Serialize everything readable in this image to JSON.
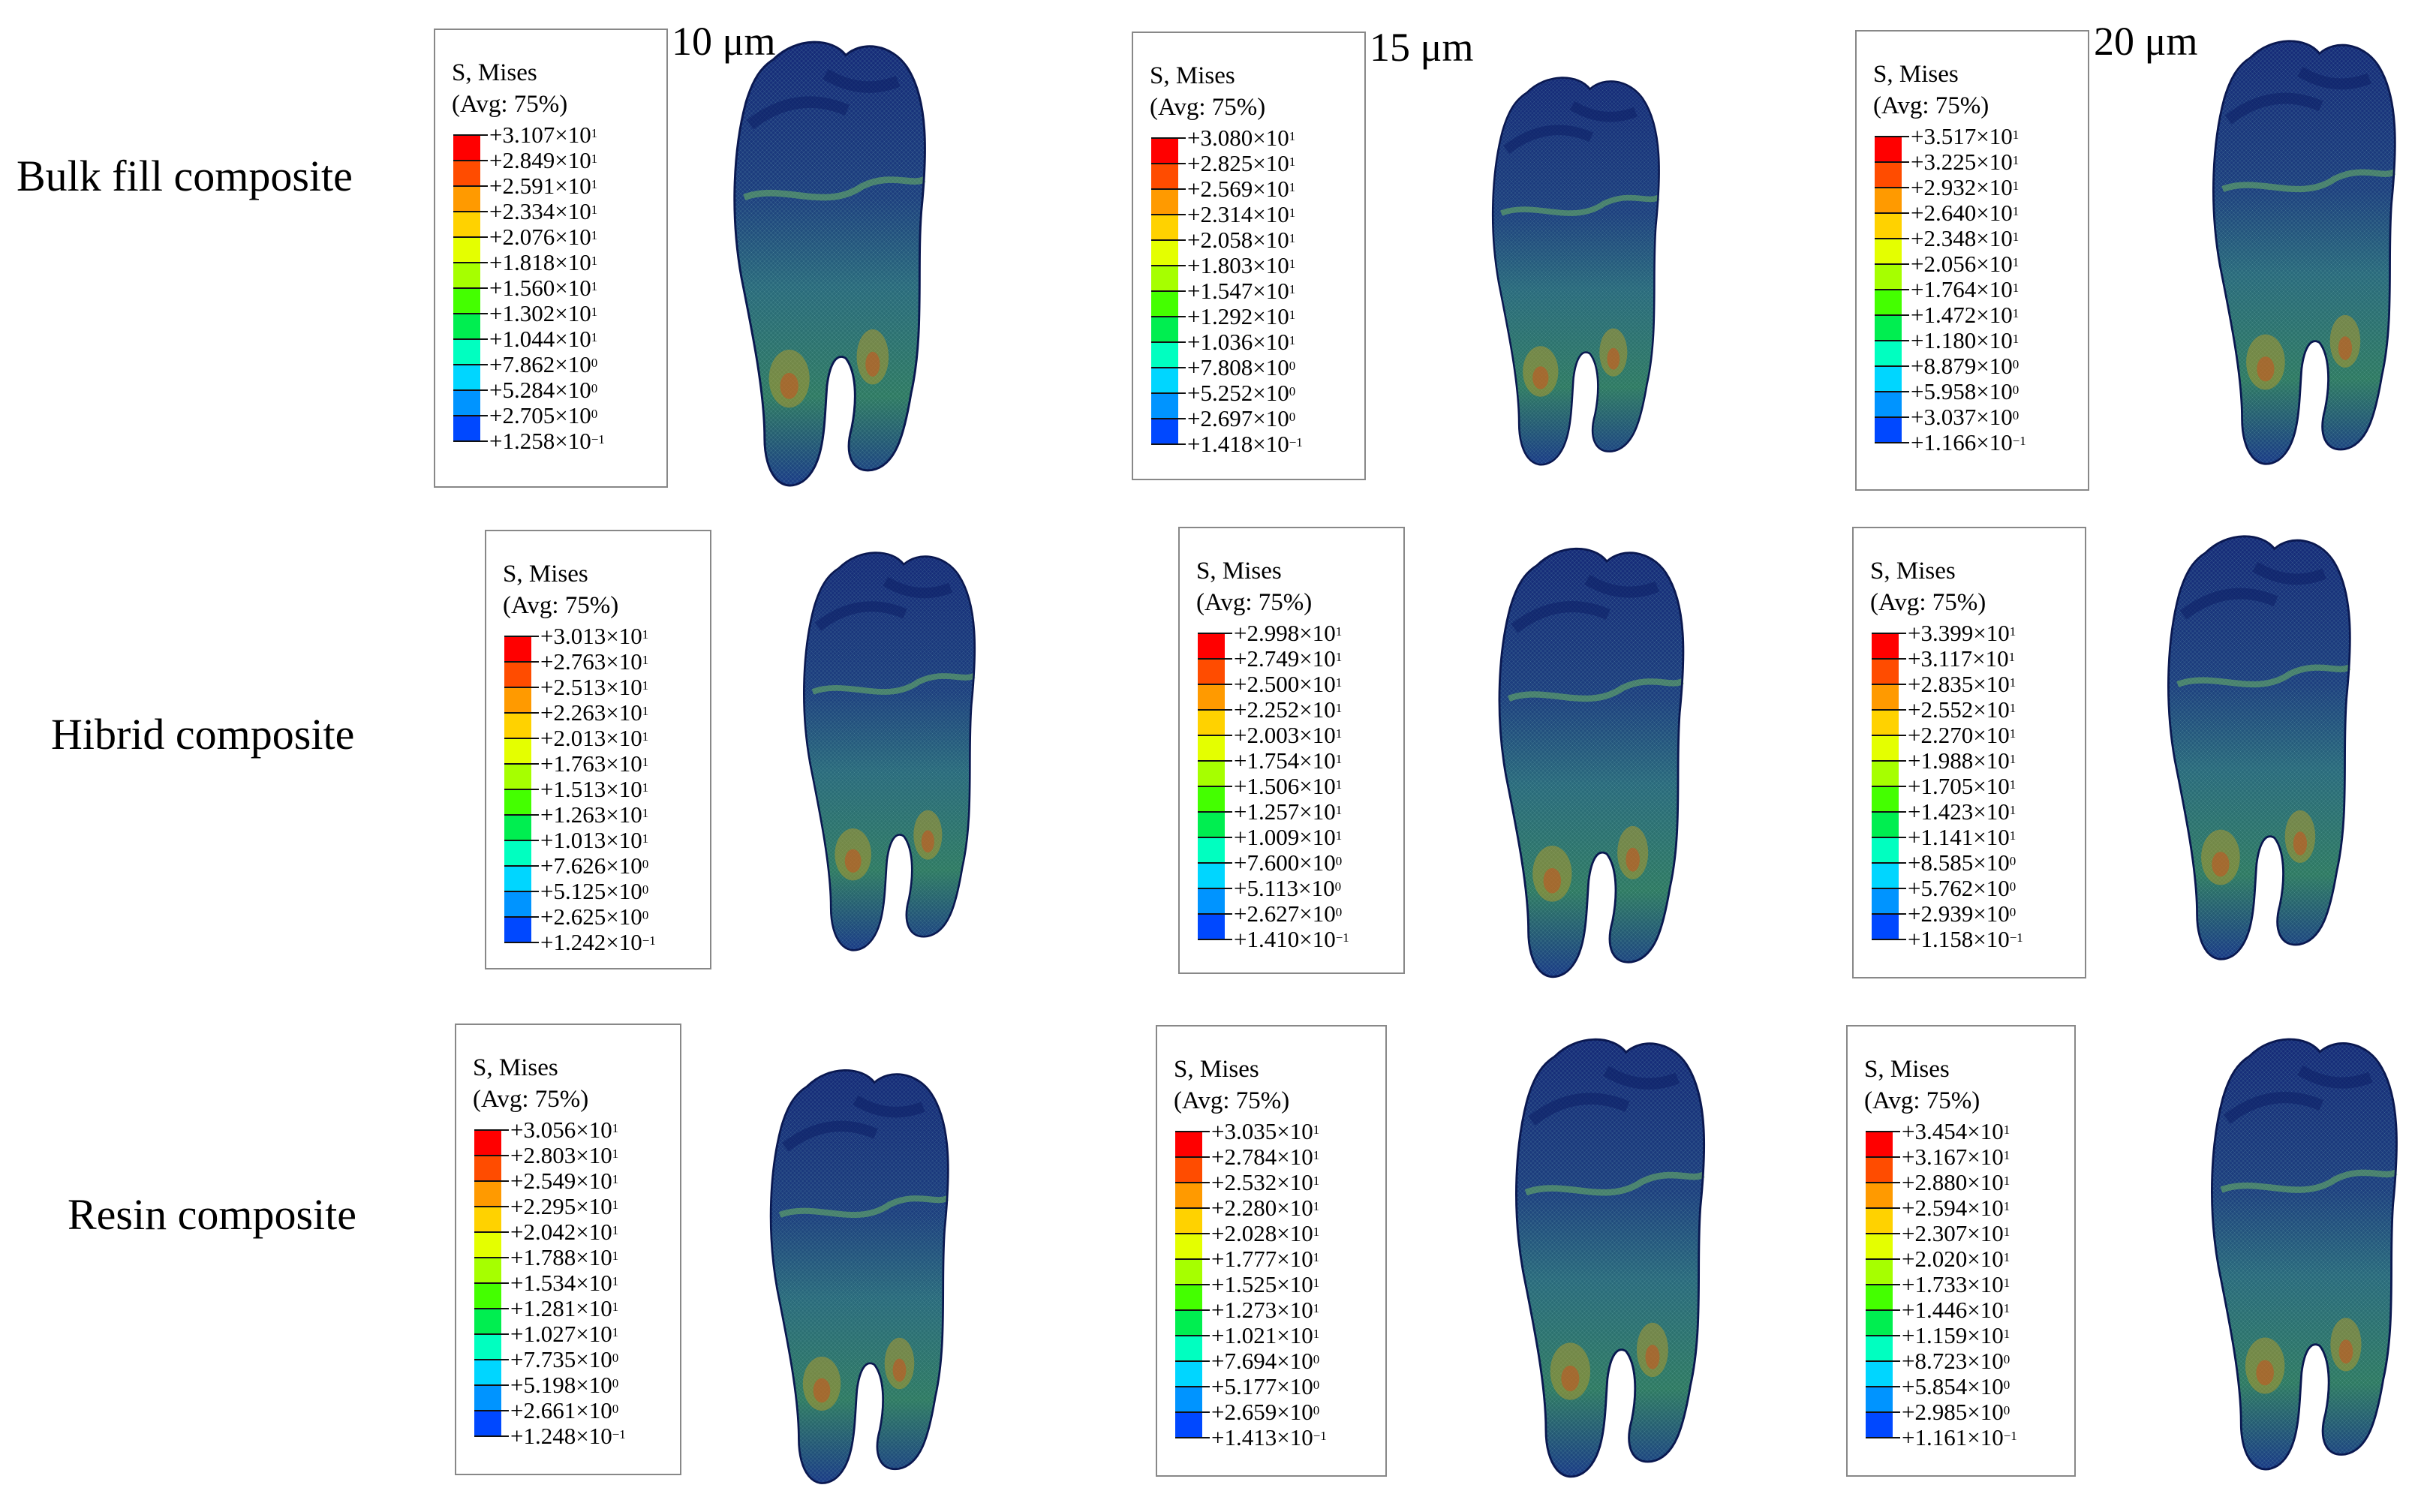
{
  "columns": [
    {
      "label": "10 μm"
    },
    {
      "label": "15 μm"
    },
    {
      "label": "20 μm"
    }
  ],
  "rows": [
    {
      "label": "Bulk fill composite"
    },
    {
      "label": "Hibrid composite"
    },
    {
      "label": "Resin composite"
    }
  ],
  "legend_title": "S, Mises",
  "legend_subtitle": "(Avg: 75%)",
  "colormap": [
    "#ff0000",
    "#ff4c00",
    "#ff9a00",
    "#ffd200",
    "#e4ff00",
    "#a6ff00",
    "#44ff00",
    "#00ee50",
    "#00ffc0",
    "#00d6ff",
    "#0094ff",
    "#0048ff",
    "#0000ff"
  ],
  "legends": [
    {
      "panel": "bulk-10",
      "values": [
        {
          "m": "+3.107",
          "e": "1"
        },
        {
          "m": "+2.849",
          "e": "1"
        },
        {
          "m": "+2.591",
          "e": "1"
        },
        {
          "m": "+2.334",
          "e": "1"
        },
        {
          "m": "+2.076",
          "e": "1"
        },
        {
          "m": "+1.818",
          "e": "1"
        },
        {
          "m": "+1.560",
          "e": "1"
        },
        {
          "m": "+1.302",
          "e": "1"
        },
        {
          "m": "+1.044",
          "e": "1"
        },
        {
          "m": "+7.862",
          "e": "0"
        },
        {
          "m": "+5.284",
          "e": "0"
        },
        {
          "m": "+2.705",
          "e": "0"
        },
        {
          "m": "+1.258",
          "e": "−1"
        }
      ]
    },
    {
      "panel": "bulk-15",
      "values": [
        {
          "m": "+3.080",
          "e": "1"
        },
        {
          "m": "+2.825",
          "e": "1"
        },
        {
          "m": "+2.569",
          "e": "1"
        },
        {
          "m": "+2.314",
          "e": "1"
        },
        {
          "m": "+2.058",
          "e": "1"
        },
        {
          "m": "+1.803",
          "e": "1"
        },
        {
          "m": "+1.547",
          "e": "1"
        },
        {
          "m": "+1.292",
          "e": "1"
        },
        {
          "m": "+1.036",
          "e": "1"
        },
        {
          "m": "+7.808",
          "e": "0"
        },
        {
          "m": "+5.252",
          "e": "0"
        },
        {
          "m": "+2.697",
          "e": "0"
        },
        {
          "m": "+1.418",
          "e": "−1"
        }
      ]
    },
    {
      "panel": "bulk-20",
      "values": [
        {
          "m": "+3.517",
          "e": "1"
        },
        {
          "m": "+3.225",
          "e": "1"
        },
        {
          "m": "+2.932",
          "e": "1"
        },
        {
          "m": "+2.640",
          "e": "1"
        },
        {
          "m": "+2.348",
          "e": "1"
        },
        {
          "m": "+2.056",
          "e": "1"
        },
        {
          "m": "+1.764",
          "e": "1"
        },
        {
          "m": "+1.472",
          "e": "1"
        },
        {
          "m": "+1.180",
          "e": "1"
        },
        {
          "m": "+8.879",
          "e": "0"
        },
        {
          "m": "+5.958",
          "e": "0"
        },
        {
          "m": "+3.037",
          "e": "0"
        },
        {
          "m": "+1.166",
          "e": "−1"
        }
      ]
    },
    {
      "panel": "hibrid-10",
      "values": [
        {
          "m": "+3.013",
          "e": "1"
        },
        {
          "m": "+2.763",
          "e": "1"
        },
        {
          "m": "+2.513",
          "e": "1"
        },
        {
          "m": "+2.263",
          "e": "1"
        },
        {
          "m": "+2.013",
          "e": "1"
        },
        {
          "m": "+1.763",
          "e": "1"
        },
        {
          "m": "+1.513",
          "e": "1"
        },
        {
          "m": "+1.263",
          "e": "1"
        },
        {
          "m": "+1.013",
          "e": "1"
        },
        {
          "m": "+7.626",
          "e": "0"
        },
        {
          "m": "+5.125",
          "e": "0"
        },
        {
          "m": "+2.625",
          "e": "0"
        },
        {
          "m": "+1.242",
          "e": "−1"
        }
      ]
    },
    {
      "panel": "hibrid-15",
      "values": [
        {
          "m": "+2.998",
          "e": "1"
        },
        {
          "m": "+2.749",
          "e": "1"
        },
        {
          "m": "+2.500",
          "e": "1"
        },
        {
          "m": "+2.252",
          "e": "1"
        },
        {
          "m": "+2.003",
          "e": "1"
        },
        {
          "m": "+1.754",
          "e": "1"
        },
        {
          "m": "+1.506",
          "e": "1"
        },
        {
          "m": "+1.257",
          "e": "1"
        },
        {
          "m": "+1.009",
          "e": "1"
        },
        {
          "m": "+7.600",
          "e": "0"
        },
        {
          "m": "+5.113",
          "e": "0"
        },
        {
          "m": "+2.627",
          "e": "0"
        },
        {
          "m": "+1.410",
          "e": "−1"
        }
      ]
    },
    {
      "panel": "hibrid-20",
      "values": [
        {
          "m": "+3.399",
          "e": "1"
        },
        {
          "m": "+3.117",
          "e": "1"
        },
        {
          "m": "+2.835",
          "e": "1"
        },
        {
          "m": "+2.552",
          "e": "1"
        },
        {
          "m": "+2.270",
          "e": "1"
        },
        {
          "m": "+1.988",
          "e": "1"
        },
        {
          "m": "+1.705",
          "e": "1"
        },
        {
          "m": "+1.423",
          "e": "1"
        },
        {
          "m": "+1.141",
          "e": "1"
        },
        {
          "m": "+8.585",
          "e": "0"
        },
        {
          "m": "+5.762",
          "e": "0"
        },
        {
          "m": "+2.939",
          "e": "0"
        },
        {
          "m": "+1.158",
          "e": "−1"
        }
      ]
    },
    {
      "panel": "resin-10",
      "values": [
        {
          "m": "+3.056",
          "e": "1"
        },
        {
          "m": "+2.803",
          "e": "1"
        },
        {
          "m": "+2.549",
          "e": "1"
        },
        {
          "m": "+2.295",
          "e": "1"
        },
        {
          "m": "+2.042",
          "e": "1"
        },
        {
          "m": "+1.788",
          "e": "1"
        },
        {
          "m": "+1.534",
          "e": "1"
        },
        {
          "m": "+1.281",
          "e": "1"
        },
        {
          "m": "+1.027",
          "e": "1"
        },
        {
          "m": "+7.735",
          "e": "0"
        },
        {
          "m": "+5.198",
          "e": "0"
        },
        {
          "m": "+2.661",
          "e": "0"
        },
        {
          "m": "+1.248",
          "e": "−1"
        }
      ]
    },
    {
      "panel": "resin-15",
      "values": [
        {
          "m": "+3.035",
          "e": "1"
        },
        {
          "m": "+2.784",
          "e": "1"
        },
        {
          "m": "+2.532",
          "e": "1"
        },
        {
          "m": "+2.280",
          "e": "1"
        },
        {
          "m": "+2.028",
          "e": "1"
        },
        {
          "m": "+1.777",
          "e": "1"
        },
        {
          "m": "+1.525",
          "e": "1"
        },
        {
          "m": "+1.273",
          "e": "1"
        },
        {
          "m": "+1.021",
          "e": "1"
        },
        {
          "m": "+7.694",
          "e": "0"
        },
        {
          "m": "+5.177",
          "e": "0"
        },
        {
          "m": "+2.659",
          "e": "0"
        },
        {
          "m": "+1.413",
          "e": "−1"
        }
      ]
    },
    {
      "panel": "resin-20",
      "values": [
        {
          "m": "+3.454",
          "e": "1"
        },
        {
          "m": "+3.167",
          "e": "1"
        },
        {
          "m": "+2.880",
          "e": "1"
        },
        {
          "m": "+2.594",
          "e": "1"
        },
        {
          "m": "+2.307",
          "e": "1"
        },
        {
          "m": "+2.020",
          "e": "1"
        },
        {
          "m": "+1.733",
          "e": "1"
        },
        {
          "m": "+1.446",
          "e": "1"
        },
        {
          "m": "+1.159",
          "e": "1"
        },
        {
          "m": "+8.723",
          "e": "0"
        },
        {
          "m": "+5.854",
          "e": "0"
        },
        {
          "m": "+2.985",
          "e": "0"
        },
        {
          "m": "+1.161",
          "e": "−1"
        }
      ]
    }
  ]
}
